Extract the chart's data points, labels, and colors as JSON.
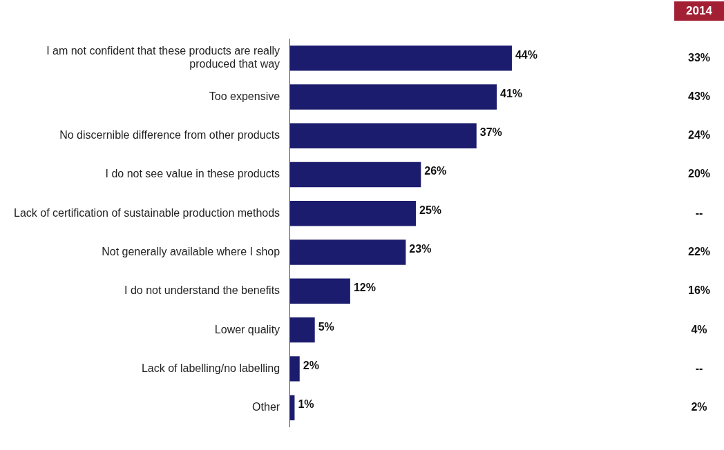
{
  "chart_data": {
    "type": "bar",
    "orientation": "horizontal",
    "categories": [
      "I am not confident that these products are really produced that way",
      "Too expensive",
      "No discernible difference from other products",
      "I do not see value in these products",
      "Lack of certification of sustainable production methods",
      "Not generally available where I shop",
      "I do not understand the benefits",
      "Lower quality",
      "Lack of labelling/no labelling",
      "Other"
    ],
    "series": [
      {
        "color": "#1c1c6e",
        "values": [
          44,
          41,
          37,
          26,
          25,
          23,
          12,
          5,
          2,
          1
        ],
        "value_labels": [
          "44%",
          "41%",
          "37%",
          "26%",
          "25%",
          "23%",
          "12%",
          "5%",
          "2%",
          "1%"
        ]
      }
    ],
    "annotations": [
      "2014",
      "33%",
      "43%",
      "24%",
      "20%",
      "--",
      "22%",
      "16%",
      "4%",
      "--",
      "2%"
    ]
  }
}
